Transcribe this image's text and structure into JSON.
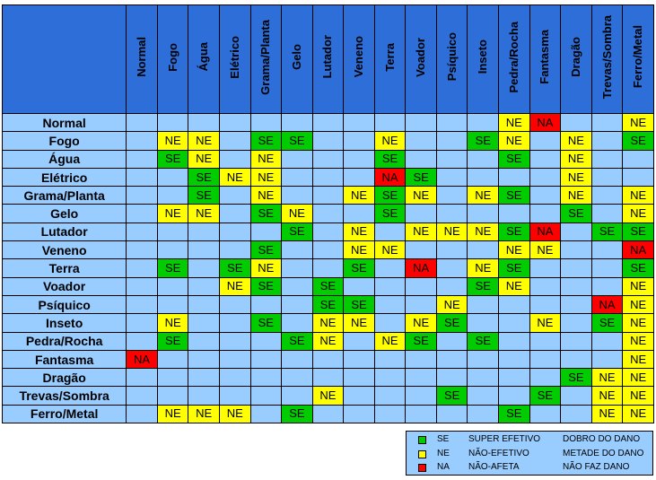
{
  "columns": [
    "Normal",
    "Fogo",
    "Água",
    "Elétrico",
    "Grama/Planta",
    "Gelo",
    "Lutador",
    "Veneno",
    "Terra",
    "Voador",
    "Psíquico",
    "Inseto",
    "Pedra/Rocha",
    "Fantasma",
    "Dragão",
    "Trevas/Sombra",
    "Ferro/Metal"
  ],
  "rows": [
    {
      "label": "Normal",
      "cells": [
        "",
        "",
        "",
        "",
        "",
        "",
        "",
        "",
        "",
        "",
        "",
        "",
        "NE",
        "NA",
        "",
        "",
        "NE"
      ]
    },
    {
      "label": "Fogo",
      "cells": [
        "",
        "NE",
        "NE",
        "",
        "SE",
        "SE",
        "",
        "",
        "NE",
        "",
        "",
        "SE",
        "NE",
        "",
        "NE",
        "",
        "SE"
      ]
    },
    {
      "label": "Água",
      "cells": [
        "",
        "SE",
        "NE",
        "",
        "NE",
        "",
        "",
        "",
        "SE",
        "",
        "",
        "",
        "SE",
        "",
        "NE",
        "",
        ""
      ]
    },
    {
      "label": "Elétrico",
      "cells": [
        "",
        "",
        "SE",
        "NE",
        "NE",
        "",
        "",
        "",
        "NA",
        "SE",
        "",
        "",
        "",
        "",
        "NE",
        "",
        ""
      ]
    },
    {
      "label": "Grama/Planta",
      "cells": [
        "",
        "",
        "SE",
        "",
        "NE",
        "",
        "",
        "NE",
        "SE",
        "NE",
        "",
        "NE",
        "SE",
        "",
        "NE",
        "",
        "NE"
      ]
    },
    {
      "label": "Gelo",
      "cells": [
        "",
        "NE",
        "NE",
        "",
        "SE",
        "NE",
        "",
        "",
        "SE",
        "",
        "",
        "",
        "",
        "",
        "SE",
        "",
        "NE"
      ]
    },
    {
      "label": "Lutador",
      "cells": [
        "",
        "",
        "",
        "",
        "",
        "SE",
        "",
        "NE",
        "",
        "NE",
        "NE",
        "NE",
        "SE",
        "NA",
        "",
        "SE",
        "SE"
      ]
    },
    {
      "label": "Veneno",
      "cells": [
        "",
        "",
        "",
        "",
        "SE",
        "",
        "",
        "NE",
        "NE",
        "",
        "",
        "",
        "NE",
        "NE",
        "",
        "",
        "NA"
      ]
    },
    {
      "label": "Terra",
      "cells": [
        "",
        "SE",
        "",
        "SE",
        "NE",
        "",
        "",
        "SE",
        "",
        "NA",
        "",
        "NE",
        "SE",
        "",
        "",
        "",
        "SE"
      ]
    },
    {
      "label": "Voador",
      "cells": [
        "",
        "",
        "",
        "NE",
        "SE",
        "",
        "SE",
        "",
        "",
        "",
        "",
        "SE",
        "NE",
        "",
        "",
        "",
        "NE"
      ]
    },
    {
      "label": "Psíquico",
      "cells": [
        "",
        "",
        "",
        "",
        "",
        "",
        "SE",
        "SE",
        "",
        "",
        "NE",
        "",
        "",
        "",
        "",
        "NA",
        "NE"
      ]
    },
    {
      "label": "Inseto",
      "cells": [
        "",
        "NE",
        "",
        "",
        "SE",
        "",
        "NE",
        "NE",
        "",
        "NE",
        "SE",
        "",
        "",
        "NE",
        "",
        "SE",
        "NE"
      ]
    },
    {
      "label": "Pedra/Rocha",
      "cells": [
        "",
        "SE",
        "",
        "",
        "",
        "SE",
        "NE",
        "",
        "NE",
        "SE",
        "",
        "SE",
        "",
        "",
        "",
        "",
        "NE"
      ]
    },
    {
      "label": "Fantasma",
      "cells": [
        "NA",
        "",
        "",
        "",
        "",
        "",
        "",
        "",
        "",
        "",
        "",
        "",
        "",
        "",
        "",
        "",
        "NE"
      ]
    },
    {
      "label": "Dragão",
      "cells": [
        "",
        "",
        "",
        "",
        "",
        "",
        "",
        "",
        "",
        "",
        "",
        "",
        "",
        "",
        "SE",
        "NE",
        "NE"
      ]
    },
    {
      "label": "Trevas/Sombra",
      "cells": [
        "",
        "",
        "",
        "",
        "",
        "",
        "NE",
        "",
        "",
        "",
        "SE",
        "",
        "",
        "SE",
        "",
        "NE",
        "NE"
      ]
    },
    {
      "label": "Ferro/Metal",
      "cells": [
        "",
        "NE",
        "NE",
        "NE",
        "",
        "SE",
        "",
        "",
        "",
        "",
        "",
        "",
        "SE",
        "",
        "",
        "NE",
        "NE"
      ]
    }
  ],
  "legend": [
    {
      "code": "SE",
      "description": "SUPER EFETIVO",
      "effect": "DOBRO DO DANO",
      "color": "#00cc00"
    },
    {
      "code": "NE",
      "description": "NÃO-EFETIVO",
      "effect": "METADE DO DANO",
      "color": "#ffff00"
    },
    {
      "code": "NA",
      "description": "NÃO-AFETA",
      "effect": "NÃO FAZ DANO",
      "color": "#ff0000"
    }
  ],
  "colors": {
    "header": "#2d6ed8",
    "cell": "#99ccff",
    "super": "#00cc00",
    "half": "#ffff00",
    "none": "#ff0000"
  }
}
